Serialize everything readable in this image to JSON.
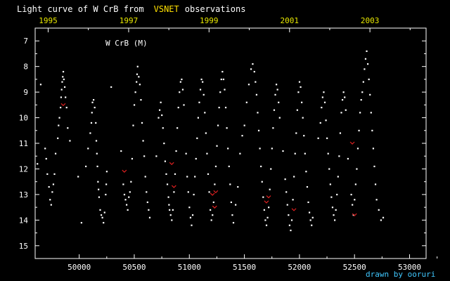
{
  "chart_data": {
    "type": "scatter",
    "title_prefix": "Light curve of W CrB from",
    "title_source": "VSNET",
    "title_suffix": "observations",
    "star_label": "W CrB (M)",
    "credit": "drawn by ooruri",
    "x_axis": {
      "label": "",
      "range": [
        49600,
        53150
      ],
      "ticks": [
        50000,
        50500,
        51000,
        51500,
        52000,
        52500,
        53000
      ],
      "tick_labels": [
        "50000",
        "50500",
        "51000",
        "51500",
        "52000",
        "52500",
        "53000"
      ]
    },
    "x_top_axis": {
      "label": "",
      "ticks": [
        49718,
        50449,
        51179,
        51910,
        52640
      ],
      "tick_labels": [
        "1995",
        "1997",
        "1999",
        "2001",
        "2003"
      ]
    },
    "y_axis": {
      "label": "",
      "range": [
        15.5,
        6.5
      ],
      "inverted": true,
      "ticks": [
        7,
        8,
        9,
        10,
        11,
        12,
        13,
        14,
        15
      ],
      "tick_labels": [
        "7",
        "8",
        "9",
        "10",
        "11",
        "12",
        "13",
        "14",
        "15"
      ]
    },
    "grid": false,
    "colors": {
      "background": "#000000",
      "points": "#ffffff",
      "upper_limits": "#e02020",
      "highlight": "#ffe000",
      "top_axis_text": "#e8e800",
      "credit": "#40c8ff"
    },
    "series": [
      {
        "kind": "visual-observations",
        "points": [
          [
            49620,
            11.8
          ],
          [
            49650,
            8.7
          ],
          [
            49690,
            11.2
          ],
          [
            49700,
            11.6
          ],
          [
            49710,
            12.2
          ],
          [
            49725,
            12.7
          ],
          [
            49735,
            13.2
          ],
          [
            49745,
            13.4
          ],
          [
            49755,
            12.9
          ],
          [
            49765,
            12.6
          ],
          [
            49775,
            12.2
          ],
          [
            49785,
            11.4
          ],
          [
            49805,
            10.8
          ],
          [
            49812,
            10.3
          ],
          [
            49820,
            10.0
          ],
          [
            49830,
            9.6
          ],
          [
            49835,
            9.2
          ],
          [
            49840,
            8.9
          ],
          [
            49845,
            8.6
          ],
          [
            49850,
            8.4
          ],
          [
            49855,
            8.2
          ],
          [
            49860,
            8.5
          ],
          [
            49868,
            8.8
          ],
          [
            49875,
            9.2
          ],
          [
            49885,
            9.6
          ],
          [
            49895,
            10.4
          ],
          [
            49915,
            10.9
          ],
          [
            49990,
            12.3
          ],
          [
            50020,
            14.1
          ],
          [
            50060,
            11.9
          ],
          [
            50080,
            11.2
          ],
          [
            50100,
            10.6
          ],
          [
            50110,
            10.2
          ],
          [
            50115,
            9.8
          ],
          [
            50120,
            9.4
          ],
          [
            50130,
            9.3
          ],
          [
            50140,
            9.6
          ],
          [
            50150,
            10.2
          ],
          [
            50155,
            10.9
          ],
          [
            50160,
            11.4
          ],
          [
            50165,
            11.9
          ],
          [
            50170,
            12.5
          ],
          [
            50175,
            12.8
          ],
          [
            50180,
            13.1
          ],
          [
            50190,
            13.6
          ],
          [
            50200,
            13.8
          ],
          [
            50210,
            13.9
          ],
          [
            50220,
            14.1
          ],
          [
            50230,
            13.7
          ],
          [
            50240,
            13.0
          ],
          [
            50245,
            12.6
          ],
          [
            50250,
            12.1
          ],
          [
            50290,
            8.8
          ],
          [
            50380,
            11.3
          ],
          [
            50400,
            12.6
          ],
          [
            50410,
            13.0
          ],
          [
            50420,
            13.2
          ],
          [
            50430,
            13.4
          ],
          [
            50440,
            13.6
          ],
          [
            50450,
            13.1
          ],
          [
            50460,
            12.9
          ],
          [
            50470,
            12.5
          ],
          [
            50480,
            11.6
          ],
          [
            50490,
            10.3
          ],
          [
            50500,
            9.5
          ],
          [
            50510,
            9.0
          ],
          [
            50520,
            8.6
          ],
          [
            50525,
            8.3
          ],
          [
            50530,
            8.0
          ],
          [
            50540,
            8.4
          ],
          [
            50550,
            8.7
          ],
          [
            50560,
            9.3
          ],
          [
            50570,
            10.2
          ],
          [
            50580,
            10.9
          ],
          [
            50590,
            11.5
          ],
          [
            50600,
            12.3
          ],
          [
            50610,
            12.9
          ],
          [
            50620,
            13.3
          ],
          [
            50630,
            13.6
          ],
          [
            50640,
            13.9
          ],
          [
            50700,
            11.5
          ],
          [
            50720,
            10.0
          ],
          [
            50730,
            9.7
          ],
          [
            50740,
            9.4
          ],
          [
            50750,
            9.9
          ],
          [
            50760,
            10.4
          ],
          [
            50770,
            11.0
          ],
          [
            50780,
            11.7
          ],
          [
            50790,
            12.2
          ],
          [
            50800,
            12.6
          ],
          [
            50810,
            13.1
          ],
          [
            50815,
            13.4
          ],
          [
            50820,
            13.6
          ],
          [
            50830,
            13.8
          ],
          [
            50840,
            14.0
          ],
          [
            50850,
            13.6
          ],
          [
            50860,
            12.9
          ],
          [
            50870,
            12.2
          ],
          [
            50880,
            11.3
          ],
          [
            50890,
            10.4
          ],
          [
            50900,
            9.6
          ],
          [
            50910,
            9.0
          ],
          [
            50920,
            8.6
          ],
          [
            50930,
            8.5
          ],
          [
            50940,
            8.9
          ],
          [
            50950,
            9.5
          ],
          [
            50970,
            11.4
          ],
          [
            50980,
            12.3
          ],
          [
            50990,
            12.9
          ],
          [
            51000,
            13.5
          ],
          [
            51010,
            13.9
          ],
          [
            51020,
            14.2
          ],
          [
            51030,
            13.8
          ],
          [
            51040,
            13.0
          ],
          [
            51050,
            12.3
          ],
          [
            51060,
            11.6
          ],
          [
            51070,
            10.8
          ],
          [
            51080,
            10.0
          ],
          [
            51090,
            9.4
          ],
          [
            51100,
            8.9
          ],
          [
            51110,
            8.5
          ],
          [
            51120,
            8.6
          ],
          [
            51130,
            9.1
          ],
          [
            51140,
            9.8
          ],
          [
            51150,
            10.6
          ],
          [
            51160,
            11.4
          ],
          [
            51170,
            12.2
          ],
          [
            51180,
            12.9
          ],
          [
            51190,
            13.6
          ],
          [
            51200,
            14.0
          ],
          [
            51210,
            13.8
          ],
          [
            51220,
            13.3
          ],
          [
            51230,
            12.6
          ],
          [
            51240,
            11.9
          ],
          [
            51250,
            11.1
          ],
          [
            51260,
            10.3
          ],
          [
            51270,
            9.6
          ],
          [
            51280,
            9.0
          ],
          [
            51290,
            8.5
          ],
          [
            51300,
            8.2
          ],
          [
            51310,
            8.5
          ],
          [
            51320,
            8.9
          ],
          [
            51330,
            9.6
          ],
          [
            51340,
            10.4
          ],
          [
            51350,
            11.2
          ],
          [
            51360,
            11.9
          ],
          [
            51370,
            12.6
          ],
          [
            51380,
            13.3
          ],
          [
            51390,
            13.8
          ],
          [
            51400,
            14.1
          ],
          [
            51420,
            13.4
          ],
          [
            51440,
            12.7
          ],
          [
            51460,
            11.4
          ],
          [
            51480,
            10.7
          ],
          [
            51500,
            10.3
          ],
          [
            51520,
            9.4
          ],
          [
            51540,
            8.7
          ],
          [
            51560,
            8.1
          ],
          [
            51575,
            7.9
          ],
          [
            51590,
            8.2
          ],
          [
            51600,
            8.6
          ],
          [
            51610,
            9.1
          ],
          [
            51620,
            9.8
          ],
          [
            51630,
            10.5
          ],
          [
            51640,
            11.2
          ],
          [
            51650,
            11.9
          ],
          [
            51660,
            12.5
          ],
          [
            51670,
            13.1
          ],
          [
            51680,
            13.6
          ],
          [
            51690,
            14.0
          ],
          [
            51700,
            14.2
          ],
          [
            51710,
            13.9
          ],
          [
            51720,
            13.5
          ],
          [
            51730,
            12.8
          ],
          [
            51740,
            12.0
          ],
          [
            51750,
            11.2
          ],
          [
            51760,
            10.4
          ],
          [
            51770,
            9.7
          ],
          [
            51780,
            9.1
          ],
          [
            51790,
            8.7
          ],
          [
            51800,
            8.9
          ],
          [
            51810,
            9.4
          ],
          [
            51820,
            10.0
          ],
          [
            51850,
            11.3
          ],
          [
            51870,
            12.4
          ],
          [
            51880,
            12.9
          ],
          [
            51890,
            13.4
          ],
          [
            51900,
            13.8
          ],
          [
            51910,
            14.2
          ],
          [
            51920,
            14.4
          ],
          [
            51930,
            14.0
          ],
          [
            51940,
            13.2
          ],
          [
            51950,
            12.3
          ],
          [
            51960,
            11.4
          ],
          [
            51970,
            10.6
          ],
          [
            51980,
            9.7
          ],
          [
            51990,
            9.0
          ],
          [
            52000,
            8.6
          ],
          [
            52010,
            8.8
          ],
          [
            52020,
            9.4
          ],
          [
            52030,
            10.0
          ],
          [
            52040,
            10.7
          ],
          [
            52050,
            11.4
          ],
          [
            52060,
            12.1
          ],
          [
            52070,
            12.7
          ],
          [
            52080,
            13.3
          ],
          [
            52090,
            13.7
          ],
          [
            52100,
            14.0
          ],
          [
            52110,
            14.2
          ],
          [
            52120,
            13.9
          ],
          [
            52170,
            10.8
          ],
          [
            52190,
            10.2
          ],
          [
            52200,
            9.6
          ],
          [
            52210,
            9.2
          ],
          [
            52220,
            9.0
          ],
          [
            52230,
            9.4
          ],
          [
            52240,
            10.1
          ],
          [
            52250,
            10.8
          ],
          [
            52260,
            11.4
          ],
          [
            52270,
            12.0
          ],
          [
            52280,
            12.6
          ],
          [
            52290,
            13.1
          ],
          [
            52300,
            13.5
          ],
          [
            52310,
            13.8
          ],
          [
            52320,
            14.0
          ],
          [
            52330,
            13.6
          ],
          [
            52340,
            13.0
          ],
          [
            52350,
            12.3
          ],
          [
            52360,
            11.5
          ],
          [
            52370,
            10.6
          ],
          [
            52380,
            9.8
          ],
          [
            52390,
            9.3
          ],
          [
            52400,
            9.0
          ],
          [
            52410,
            9.2
          ],
          [
            52420,
            9.7
          ],
          [
            52440,
            11.6
          ],
          [
            52470,
            13.0
          ],
          [
            52480,
            13.4
          ],
          [
            52490,
            13.8
          ],
          [
            52500,
            13.2
          ],
          [
            52510,
            12.6
          ],
          [
            52520,
            12.0
          ],
          [
            52530,
            11.2
          ],
          [
            52540,
            10.5
          ],
          [
            52550,
            9.8
          ],
          [
            52560,
            9.3
          ],
          [
            52570,
            9.0
          ],
          [
            52580,
            8.6
          ],
          [
            52590,
            8.1
          ],
          [
            52600,
            7.7
          ],
          [
            52610,
            7.4
          ],
          [
            52620,
            7.9
          ],
          [
            52630,
            8.5
          ],
          [
            52640,
            9.1
          ],
          [
            52650,
            9.8
          ],
          [
            52660,
            10.5
          ],
          [
            52670,
            11.2
          ],
          [
            52680,
            11.9
          ],
          [
            52690,
            12.6
          ],
          [
            52700,
            13.2
          ],
          [
            52720,
            13.6
          ],
          [
            52740,
            14.0
          ],
          [
            52760,
            13.9
          ]
        ]
      },
      {
        "kind": "fainter-than",
        "points": [
          [
            49855,
            9.5
          ],
          [
            50410,
            12.1
          ],
          [
            50840,
            11.8
          ],
          [
            50860,
            12.7
          ],
          [
            51210,
            13.0
          ],
          [
            51230,
            13.5
          ],
          [
            51240,
            12.9
          ],
          [
            51700,
            13.3
          ],
          [
            51720,
            13.1
          ],
          [
            51950,
            13.6
          ],
          [
            52480,
            11.0
          ],
          [
            52500,
            13.8
          ]
        ]
      }
    ]
  }
}
